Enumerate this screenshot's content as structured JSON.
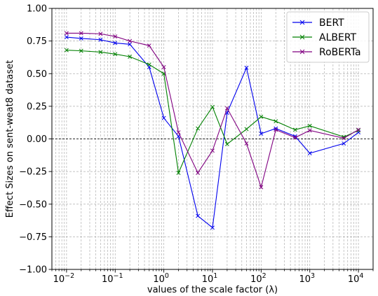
{
  "chart_data": {
    "type": "line",
    "title": "",
    "xlabel": "values of the scale factor (λ)",
    "ylabel": "Effect Sizes on sent-weat8 dataset",
    "x_scale": "log",
    "xlim": [
      0.005,
      20000
    ],
    "ylim": [
      -1.0,
      1.0
    ],
    "grid": true,
    "legend_position": "top-right",
    "reference_line": 0.0,
    "x": [
      0.01,
      0.02,
      0.05,
      0.1,
      0.2,
      0.5,
      1,
      2,
      5,
      10,
      20,
      50,
      100,
      200,
      500,
      1000,
      5000,
      10000
    ],
    "x_ticks": [
      {
        "value": 0.01,
        "base": "10",
        "exp": "−2"
      },
      {
        "value": 0.1,
        "base": "10",
        "exp": "−1"
      },
      {
        "value": 1,
        "base": "10",
        "exp": "0"
      },
      {
        "value": 10,
        "base": "10",
        "exp": "1"
      },
      {
        "value": 100,
        "base": "10",
        "exp": "2"
      },
      {
        "value": 1000,
        "base": "10",
        "exp": "3"
      },
      {
        "value": 10000,
        "base": "10",
        "exp": "4"
      }
    ],
    "y_ticks": [
      {
        "value": 1.0,
        "label": "1.00"
      },
      {
        "value": 0.75,
        "label": "0.75"
      },
      {
        "value": 0.5,
        "label": "0.50"
      },
      {
        "value": 0.25,
        "label": "0.25"
      },
      {
        "value": 0.0,
        "label": "0.00"
      },
      {
        "value": -0.25,
        "label": "−0.25"
      },
      {
        "value": -0.5,
        "label": "−0.50"
      },
      {
        "value": -0.75,
        "label": "−0.75"
      },
      {
        "value": -1.0,
        "label": "−1.00"
      }
    ],
    "series": [
      {
        "name": "BERT",
        "color": "#0000ee",
        "marker": "x",
        "values": [
          0.78,
          0.77,
          0.76,
          0.735,
          0.725,
          0.55,
          0.16,
          0.02,
          -0.59,
          -0.68,
          0.2,
          0.545,
          0.04,
          0.08,
          0.02,
          -0.11,
          -0.035,
          0.05
        ]
      },
      {
        "name": "ALBERT",
        "color": "#008000",
        "marker": "x",
        "values": [
          0.68,
          0.675,
          0.665,
          0.65,
          0.63,
          0.57,
          0.5,
          -0.26,
          0.08,
          0.245,
          -0.04,
          0.075,
          0.17,
          0.135,
          0.07,
          0.1,
          0.015,
          0.065
        ]
      },
      {
        "name": "RoBERTa",
        "color": "#800080",
        "marker": "x",
        "values": [
          0.81,
          0.81,
          0.805,
          0.785,
          0.75,
          0.715,
          0.55,
          0.05,
          -0.26,
          -0.09,
          0.235,
          -0.035,
          -0.37,
          0.07,
          0.01,
          0.065,
          0.005,
          0.07
        ]
      }
    ]
  }
}
